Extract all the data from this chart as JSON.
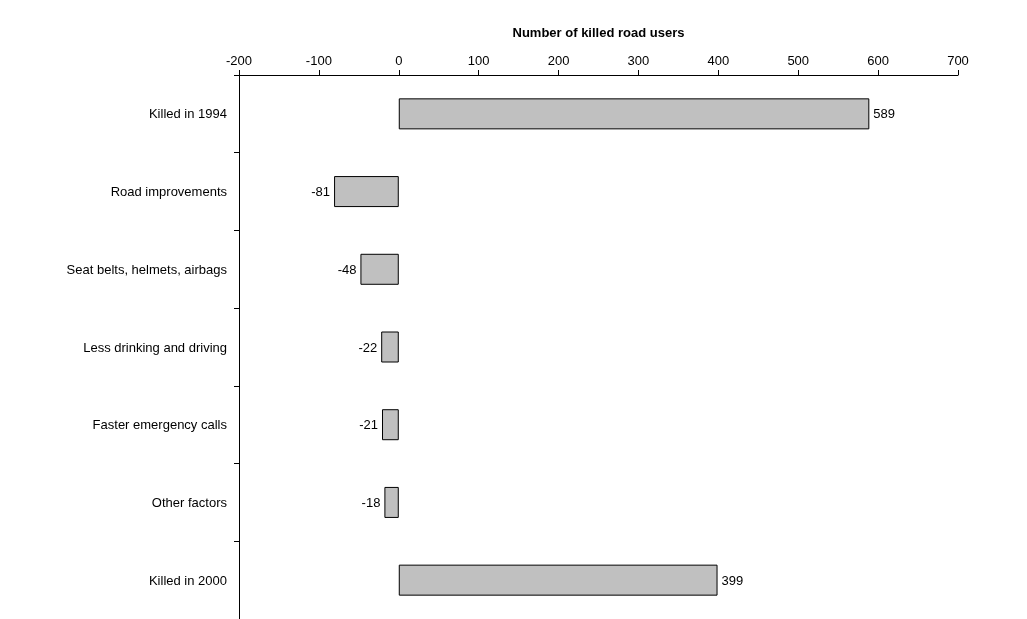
{
  "chart_data": {
    "type": "bar",
    "orientation": "horizontal",
    "xlabel": "Number of killed road users",
    "categories": [
      "Killed in 1994",
      "Road improvements",
      "Seat belts, helmets, airbags",
      "Less drinking and driving",
      "Faster emergency calls",
      "Other factors",
      "Killed in 2000"
    ],
    "values": [
      589,
      -81,
      -48,
      -22,
      -21,
      -18,
      399
    ],
    "color": "#c0c0c0",
    "xlim": [
      -200,
      700
    ],
    "xticks": [
      -200,
      -100,
      0,
      100,
      200,
      300,
      400,
      500,
      600,
      700
    ],
    "grid": false,
    "data_labels": true
  }
}
